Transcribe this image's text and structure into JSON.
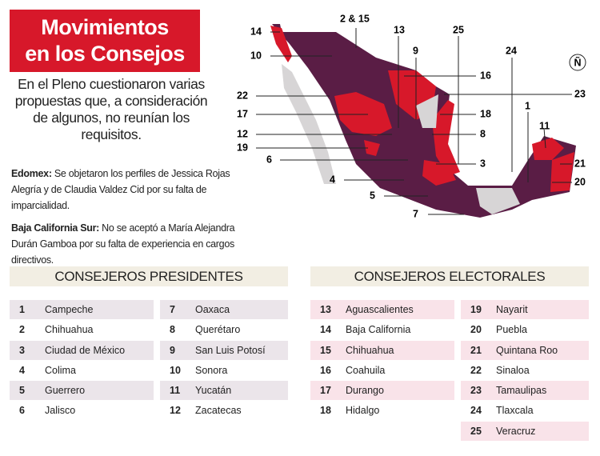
{
  "header": {
    "title_lines": [
      "Movimientos",
      "en los Consejos"
    ],
    "subtitle": "En el Pleno cuestionaron varias propuestas que, a consideración de algunos, no reunían los requisitos.",
    "logo": "Ñ"
  },
  "notes": [
    {
      "label": "Edomex:",
      "text": " Se objetaron los perfiles de Jessica Rojas Alegría y de Claudia Valdez Cid por su falta de imparcialidad."
    },
    {
      "label": "Baja California Sur:",
      "text": " No se aceptó a María Alejandra Durán Gamboa por su falta de experiencia en cargos directivos."
    }
  ],
  "map": {
    "labels": [
      "14",
      "2 & 15",
      "10",
      "13",
      "25",
      "9",
      "16",
      "24",
      "23",
      "22",
      "17",
      "18",
      "8",
      "12",
      "19",
      "6",
      "3",
      "4",
      "5",
      "7",
      "1",
      "11",
      "21",
      "20"
    ]
  },
  "tables": [
    {
      "title": "CONSEJEROS PRESIDENTES",
      "columns": [
        [
          {
            "num": 1,
            "name": "Campeche"
          },
          {
            "num": 2,
            "name": "Chihuahua"
          },
          {
            "num": 3,
            "name": "Ciudad de México"
          },
          {
            "num": 4,
            "name": "Colima"
          },
          {
            "num": 5,
            "name": "Guerrero"
          },
          {
            "num": 6,
            "name": "Jalisco"
          }
        ],
        [
          {
            "num": 7,
            "name": "Oaxaca"
          },
          {
            "num": 8,
            "name": "Querétaro"
          },
          {
            "num": 9,
            "name": "San Luis Potosí"
          },
          {
            "num": 10,
            "name": "Sonora"
          },
          {
            "num": 11,
            "name": "Yucatán"
          },
          {
            "num": 12,
            "name": "Zacatecas"
          }
        ]
      ]
    },
    {
      "title": "CONSEJEROS ELECTORALES",
      "columns": [
        [
          {
            "num": 13,
            "name": "Aguascalientes"
          },
          {
            "num": 14,
            "name": "Baja California"
          },
          {
            "num": 15,
            "name": "Chihuahua"
          },
          {
            "num": 16,
            "name": "Coahuila"
          },
          {
            "num": 17,
            "name": "Durango"
          },
          {
            "num": 18,
            "name": "Hidalgo"
          }
        ],
        [
          {
            "num": 19,
            "name": "Nayarit"
          },
          {
            "num": 20,
            "name": "Puebla"
          },
          {
            "num": 21,
            "name": "Quintana Roo"
          },
          {
            "num": 22,
            "name": "Sinaloa"
          },
          {
            "num": 23,
            "name": "Tamaulipas"
          },
          {
            "num": 24,
            "name": "Tlaxcala"
          },
          {
            "num": 25,
            "name": "Veracruz"
          }
        ]
      ]
    }
  ]
}
